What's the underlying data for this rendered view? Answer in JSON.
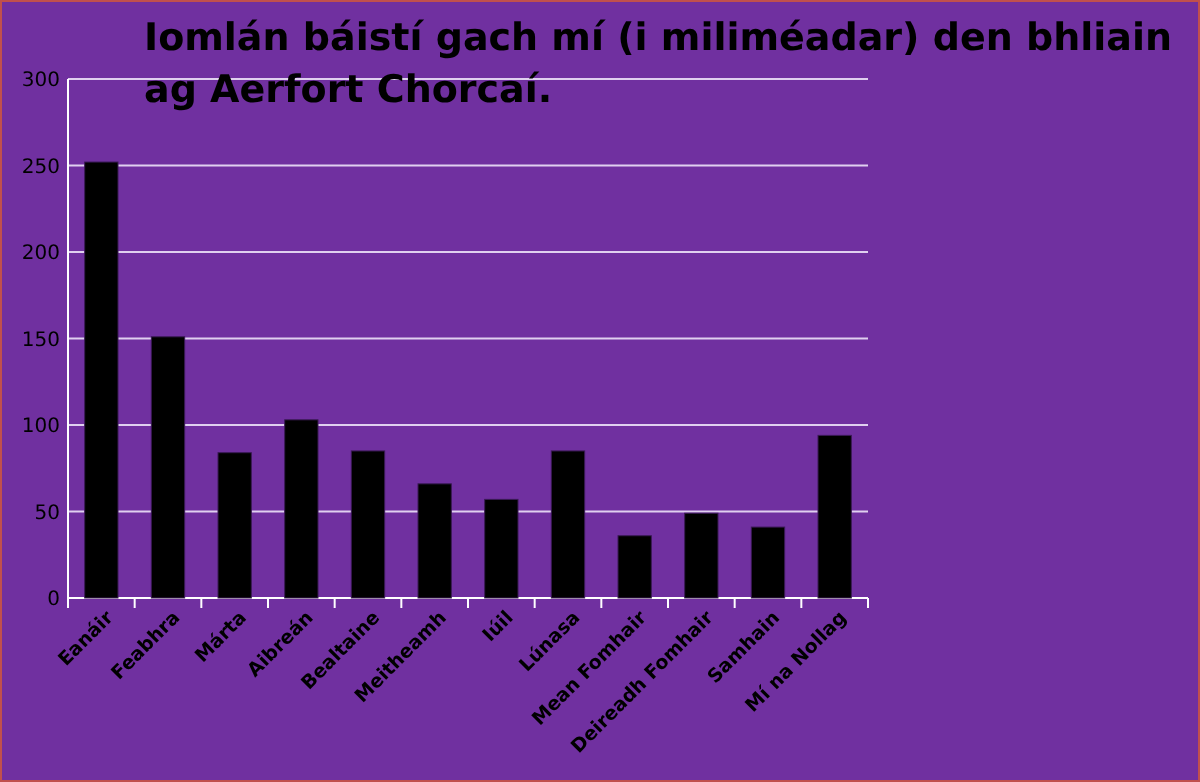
{
  "chart_data": {
    "type": "bar",
    "title": "Iomlán báistí gach mí (i miliméadar) den bhliain ag Aerfort Chorcaí.",
    "categories": [
      "Eanáir",
      "Feabhra",
      "Márta",
      "Aibreán",
      "Bealtaine",
      "Meitheamh",
      "Iúil",
      "Lúnasa",
      "Mean Fomhair",
      "Deireadh Fomhair",
      "Samhain",
      "Mí na Nollag"
    ],
    "values": [
      252,
      151,
      84,
      103,
      85,
      66,
      57,
      85,
      36,
      49,
      41,
      94
    ],
    "color": "#000000",
    "ylim": [
      0,
      300
    ],
    "yticks": [
      0,
      50,
      100,
      150,
      200,
      250,
      300
    ],
    "grid": "y"
  }
}
